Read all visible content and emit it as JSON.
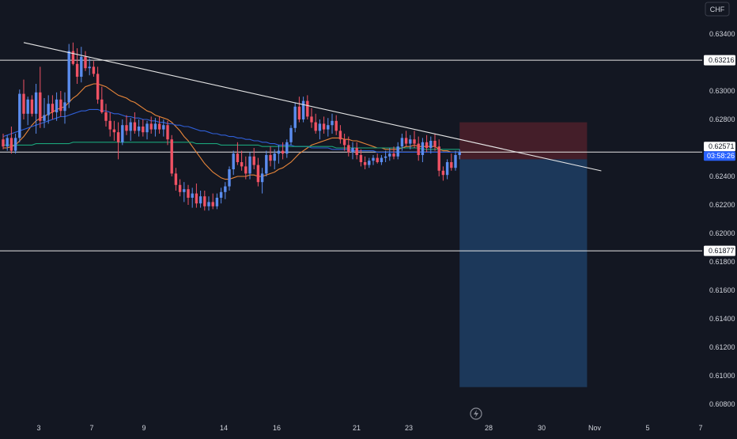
{
  "currency_button": {
    "label": "CHF"
  },
  "price_axis": {
    "ticks": [
      "0.63400",
      "0.63000",
      "0.62800",
      "0.62400",
      "0.62200",
      "0.62000",
      "0.61800",
      "0.61600",
      "0.61400",
      "0.61200",
      "0.61000",
      "0.60800"
    ],
    "badges": [
      {
        "value": "0.63216",
        "type": "level"
      },
      {
        "value": "0.62571",
        "type": "current",
        "countdown": "03:58:26"
      },
      {
        "value": "0.61877",
        "type": "level"
      }
    ]
  },
  "time_axis": {
    "labels": [
      "3",
      "7",
      "9",
      "14",
      "16",
      "21",
      "23",
      "28",
      "30",
      "Nov",
      "5",
      "7"
    ]
  },
  "colors": {
    "background": "#131722",
    "up": "#5b8def",
    "down": "#f05264",
    "ema_fast": "#e8863a",
    "ma_mid": "#2f5fd8",
    "ma_slow": "#1aa37a",
    "stop_zone": "#4a1f2a",
    "target_zone": "#1c3a5e",
    "lines": "#e6e6e6",
    "current_badge": "#2962ff"
  },
  "chart_data": {
    "type": "candlestick",
    "title": "",
    "xlabel": "",
    "ylabel": "",
    "ylim": [
      0.6075,
      0.635
    ],
    "x_ticks": [
      "3",
      "7",
      "9",
      "14",
      "16",
      "21",
      "23",
      "28",
      "30",
      "Nov",
      "5",
      "7"
    ],
    "y_ticks": [
      0.634,
      0.63,
      0.628,
      0.624,
      0.622,
      0.62,
      0.618,
      0.616,
      0.614,
      0.612,
      0.61,
      0.608
    ],
    "horizontal_levels": [
      0.63216,
      0.62571,
      0.61877
    ],
    "trendline": {
      "start": [
        5,
        0.6334
      ],
      "end": [
        142,
        0.6245
      ]
    },
    "position": {
      "entry": 0.6252,
      "stop": 0.6278,
      "target": 0.6092,
      "start_index": 111,
      "end_index": 142
    },
    "candles": [
      [
        0.6266,
        0.627,
        0.6259,
        0.6261
      ],
      [
        0.6261,
        0.6269,
        0.6258,
        0.6267
      ],
      [
        0.6267,
        0.6275,
        0.6256,
        0.6258
      ],
      [
        0.6258,
        0.627,
        0.6256,
        0.6267
      ],
      [
        0.6267,
        0.6301,
        0.6264,
        0.6298
      ],
      [
        0.6298,
        0.6308,
        0.628,
        0.6284
      ],
      [
        0.6284,
        0.6296,
        0.6276,
        0.6294
      ],
      [
        0.6294,
        0.6297,
        0.6282,
        0.6284
      ],
      [
        0.6284,
        0.6305,
        0.627,
        0.6299
      ],
      [
        0.6299,
        0.6317,
        0.6274,
        0.6279
      ],
      [
        0.6279,
        0.6295,
        0.6274,
        0.6283
      ],
      [
        0.6283,
        0.6297,
        0.6277,
        0.6291
      ],
      [
        0.6291,
        0.6297,
        0.628,
        0.6285
      ],
      [
        0.6285,
        0.6299,
        0.6279,
        0.6294
      ],
      [
        0.6294,
        0.63,
        0.6282,
        0.6286
      ],
      [
        0.6286,
        0.6299,
        0.6277,
        0.6292
      ],
      [
        0.6292,
        0.6333,
        0.6288,
        0.6328
      ],
      [
        0.6328,
        0.6334,
        0.6318,
        0.6319
      ],
      [
        0.6319,
        0.633,
        0.6305,
        0.631
      ],
      [
        0.631,
        0.6331,
        0.6306,
        0.6324
      ],
      [
        0.6324,
        0.6328,
        0.6314,
        0.6316
      ],
      [
        0.6316,
        0.6323,
        0.6311,
        0.6317
      ],
      [
        0.6317,
        0.6321,
        0.631,
        0.6312
      ],
      [
        0.6312,
        0.6317,
        0.6291,
        0.6294
      ],
      [
        0.6294,
        0.6303,
        0.6284,
        0.6285
      ],
      [
        0.6285,
        0.6291,
        0.6275,
        0.6279
      ],
      [
        0.6279,
        0.6285,
        0.6268,
        0.6273
      ],
      [
        0.6273,
        0.6279,
        0.6265,
        0.6271
      ],
      [
        0.6271,
        0.6278,
        0.6252,
        0.6264
      ],
      [
        0.6264,
        0.628,
        0.6262,
        0.6276
      ],
      [
        0.6276,
        0.6283,
        0.6269,
        0.6272
      ],
      [
        0.6272,
        0.6281,
        0.6265,
        0.6278
      ],
      [
        0.6278,
        0.6285,
        0.627,
        0.6272
      ],
      [
        0.6272,
        0.628,
        0.6268,
        0.6275
      ],
      [
        0.6275,
        0.628,
        0.6268,
        0.6271
      ],
      [
        0.6271,
        0.6279,
        0.6266,
        0.6277
      ],
      [
        0.6277,
        0.6282,
        0.627,
        0.6273
      ],
      [
        0.6273,
        0.6281,
        0.6268,
        0.6277
      ],
      [
        0.6277,
        0.6282,
        0.627,
        0.6273
      ],
      [
        0.6273,
        0.628,
        0.6268,
        0.6276
      ],
      [
        0.6276,
        0.6279,
        0.6262,
        0.6266
      ],
      [
        0.6266,
        0.6269,
        0.624,
        0.6242
      ],
      [
        0.6242,
        0.6246,
        0.623,
        0.6234
      ],
      [
        0.6234,
        0.6238,
        0.6226,
        0.6229
      ],
      [
        0.6229,
        0.6236,
        0.6222,
        0.6231
      ],
      [
        0.6231,
        0.6234,
        0.622,
        0.6225
      ],
      [
        0.6225,
        0.6232,
        0.6218,
        0.6228
      ],
      [
        0.6228,
        0.6235,
        0.6218,
        0.6221
      ],
      [
        0.6221,
        0.623,
        0.6218,
        0.6226
      ],
      [
        0.6226,
        0.623,
        0.6216,
        0.6219
      ],
      [
        0.6219,
        0.6226,
        0.6216,
        0.6222
      ],
      [
        0.6222,
        0.6228,
        0.6217,
        0.6219
      ],
      [
        0.6219,
        0.6228,
        0.6217,
        0.6225
      ],
      [
        0.6225,
        0.6232,
        0.6221,
        0.6229
      ],
      [
        0.6229,
        0.6236,
        0.6224,
        0.6233
      ],
      [
        0.6233,
        0.6247,
        0.623,
        0.6245
      ],
      [
        0.6245,
        0.6258,
        0.6241,
        0.6256
      ],
      [
        0.6256,
        0.6264,
        0.6248,
        0.625
      ],
      [
        0.625,
        0.6258,
        0.6244,
        0.6247
      ],
      [
        0.6247,
        0.6254,
        0.6238,
        0.6242
      ],
      [
        0.6242,
        0.6257,
        0.6238,
        0.6254
      ],
      [
        0.6254,
        0.626,
        0.6245,
        0.6248
      ],
      [
        0.6248,
        0.6253,
        0.6233,
        0.6236
      ],
      [
        0.6236,
        0.6246,
        0.6228,
        0.6242
      ],
      [
        0.6242,
        0.6258,
        0.624,
        0.6255
      ],
      [
        0.6255,
        0.6261,
        0.6247,
        0.6251
      ],
      [
        0.6251,
        0.6259,
        0.6245,
        0.6256
      ],
      [
        0.6256,
        0.6262,
        0.6249,
        0.6258
      ],
      [
        0.6258,
        0.6264,
        0.6252,
        0.6256
      ],
      [
        0.6256,
        0.6266,
        0.6253,
        0.6264
      ],
      [
        0.6264,
        0.6276,
        0.6262,
        0.6274
      ],
      [
        0.6274,
        0.6292,
        0.6271,
        0.6289
      ],
      [
        0.6289,
        0.6296,
        0.6278,
        0.628
      ],
      [
        0.628,
        0.6296,
        0.6278,
        0.6293
      ],
      [
        0.6293,
        0.6297,
        0.628,
        0.6282
      ],
      [
        0.6282,
        0.6288,
        0.6274,
        0.6278
      ],
      [
        0.6278,
        0.6284,
        0.627,
        0.6272
      ],
      [
        0.6272,
        0.628,
        0.6266,
        0.6277
      ],
      [
        0.6277,
        0.6282,
        0.627,
        0.6273
      ],
      [
        0.6273,
        0.6281,
        0.6268,
        0.6276
      ],
      [
        0.6276,
        0.6284,
        0.627,
        0.6279
      ],
      [
        0.6279,
        0.6283,
        0.6269,
        0.6272
      ],
      [
        0.6272,
        0.6276,
        0.6263,
        0.6266
      ],
      [
        0.6266,
        0.627,
        0.6258,
        0.6262
      ],
      [
        0.6262,
        0.6268,
        0.6254,
        0.6257
      ],
      [
        0.6257,
        0.6264,
        0.6252,
        0.626
      ],
      [
        0.626,
        0.6264,
        0.6252,
        0.6255
      ],
      [
        0.6255,
        0.6259,
        0.6247,
        0.625
      ],
      [
        0.625,
        0.6254,
        0.6245,
        0.6248
      ],
      [
        0.6248,
        0.6253,
        0.6246,
        0.6251
      ],
      [
        0.6251,
        0.6255,
        0.6248,
        0.6253
      ],
      [
        0.6253,
        0.6256,
        0.6249,
        0.625
      ],
      [
        0.625,
        0.6255,
        0.6248,
        0.6253
      ],
      [
        0.6253,
        0.6258,
        0.625,
        0.6254
      ],
      [
        0.6254,
        0.626,
        0.6251,
        0.6256
      ],
      [
        0.6256,
        0.6261,
        0.6252,
        0.6254
      ],
      [
        0.6254,
        0.6264,
        0.6252,
        0.6261
      ],
      [
        0.6261,
        0.627,
        0.6258,
        0.6267
      ],
      [
        0.6267,
        0.6272,
        0.6261,
        0.6263
      ],
      [
        0.6263,
        0.6269,
        0.6259,
        0.6266
      ],
      [
        0.6266,
        0.6272,
        0.626,
        0.6263
      ],
      [
        0.6263,
        0.6268,
        0.6251,
        0.6255
      ],
      [
        0.6255,
        0.6267,
        0.625,
        0.6264
      ],
      [
        0.6264,
        0.6269,
        0.6257,
        0.626
      ],
      [
        0.626,
        0.6268,
        0.6256,
        0.6265
      ],
      [
        0.6265,
        0.627,
        0.6258,
        0.6261
      ],
      [
        0.6261,
        0.6266,
        0.624,
        0.6244
      ],
      [
        0.6244,
        0.6247,
        0.6237,
        0.6241
      ],
      [
        0.6241,
        0.6252,
        0.6238,
        0.625
      ],
      [
        0.625,
        0.6256,
        0.6244,
        0.6246
      ],
      [
        0.6246,
        0.6258,
        0.6244,
        0.6255
      ],
      [
        0.6255,
        0.6259,
        0.6252,
        0.62571
      ]
    ],
    "moving_averages": [
      {
        "color": "ema_fast",
        "values": [
          0.626,
          0.626,
          0.6261,
          0.6262,
          0.6265,
          0.6268,
          0.6272,
          0.6276,
          0.6279,
          0.6281,
          0.6282,
          0.6284,
          0.6285,
          0.6287,
          0.6288,
          0.6289,
          0.6292,
          0.6295,
          0.6297,
          0.63,
          0.6303,
          0.6304,
          0.6305,
          0.6305,
          0.6304,
          0.6303,
          0.6301,
          0.6299,
          0.6297,
          0.6296,
          0.6295,
          0.6293,
          0.6292,
          0.629,
          0.6288,
          0.6286,
          0.6285,
          0.6283,
          0.6282,
          0.6281,
          0.628,
          0.6278,
          0.6275,
          0.6272,
          0.6268,
          0.6265,
          0.6261,
          0.6257,
          0.6253,
          0.6249,
          0.6246,
          0.6243,
          0.6241,
          0.6239,
          0.6238,
          0.6238,
          0.6239,
          0.624,
          0.624,
          0.624,
          0.6241,
          0.6241,
          0.624,
          0.624,
          0.6241,
          0.6242,
          0.6243,
          0.6245,
          0.6246,
          0.6248,
          0.625,
          0.6253,
          0.6256,
          0.6258,
          0.626,
          0.6262,
          0.6263,
          0.6264,
          0.6265,
          0.6266,
          0.6267,
          0.6267,
          0.6267,
          0.6266,
          0.6266,
          0.6265,
          0.6265,
          0.6264,
          0.6263,
          0.6262,
          0.6261,
          0.626,
          0.626,
          0.6259,
          0.6259,
          0.6259,
          0.6259,
          0.626,
          0.6261,
          0.6261,
          0.6262,
          0.6261,
          0.6261,
          0.6261,
          0.6261,
          0.6261,
          0.6259,
          0.6258,
          0.6258,
          0.6257,
          0.6257,
          0.6257
        ]
      },
      {
        "color": "ma_mid",
        "values": [
          0.6268,
          0.6269,
          0.627,
          0.6271,
          0.6272,
          0.6273,
          0.6274,
          0.6275,
          0.6276,
          0.6277,
          0.6278,
          0.6279,
          0.628,
          0.6281,
          0.6282,
          0.6282,
          0.6283,
          0.6284,
          0.6285,
          0.6286,
          0.6286,
          0.6287,
          0.6287,
          0.6287,
          0.6286,
          0.6286,
          0.6285,
          0.6284,
          0.6284,
          0.6283,
          0.6282,
          0.6282,
          0.6281,
          0.6281,
          0.628,
          0.628,
          0.6279,
          0.6279,
          0.6278,
          0.6278,
          0.6277,
          0.6277,
          0.6276,
          0.6276,
          0.6275,
          0.6275,
          0.6274,
          0.6273,
          0.6272,
          0.6272,
          0.6271,
          0.627,
          0.627,
          0.6269,
          0.6269,
          0.6268,
          0.6268,
          0.6267,
          0.6267,
          0.6266,
          0.6266,
          0.6265,
          0.6265,
          0.6264,
          0.6264,
          0.6263,
          0.6263,
          0.6262,
          0.6262,
          0.6262,
          0.6262,
          0.6261,
          0.6261,
          0.6261,
          0.6261,
          0.626,
          0.626,
          0.626,
          0.626,
          0.626,
          0.6259,
          0.6259,
          0.6259,
          0.6259,
          0.6259,
          0.6258,
          0.6258,
          0.6258,
          0.6258,
          0.6258,
          0.6258,
          0.6257,
          0.6257,
          0.6257,
          0.6257,
          0.6257,
          0.6257,
          0.6257,
          0.6257,
          0.6257,
          0.6257,
          0.6257,
          0.6257,
          0.6257,
          0.6257,
          0.6257,
          0.6257,
          0.6257,
          0.6257,
          0.6257,
          0.6257,
          0.6257
        ]
      },
      {
        "color": "ma_slow",
        "values": [
          0.6262,
          0.6262,
          0.6262,
          0.6262,
          0.6262,
          0.6262,
          0.6262,
          0.6262,
          0.6263,
          0.6263,
          0.6263,
          0.6263,
          0.6263,
          0.6263,
          0.6263,
          0.6263,
          0.6263,
          0.6264,
          0.6264,
          0.6264,
          0.6264,
          0.6264,
          0.6264,
          0.6264,
          0.6264,
          0.6264,
          0.6264,
          0.6264,
          0.6264,
          0.6264,
          0.6264,
          0.6264,
          0.6264,
          0.6264,
          0.6264,
          0.6264,
          0.6264,
          0.6264,
          0.6264,
          0.6264,
          0.6264,
          0.6264,
          0.6264,
          0.6264,
          0.6264,
          0.6264,
          0.6264,
          0.6263,
          0.6263,
          0.6263,
          0.6263,
          0.6263,
          0.6263,
          0.6262,
          0.6262,
          0.6262,
          0.6262,
          0.6262,
          0.6262,
          0.6262,
          0.6262,
          0.6262,
          0.6262,
          0.6261,
          0.6261,
          0.6261,
          0.6261,
          0.6261,
          0.6261,
          0.6261,
          0.6261,
          0.6261,
          0.6261,
          0.6261,
          0.6261,
          0.6261,
          0.6261,
          0.6261,
          0.6261,
          0.6261,
          0.6261,
          0.626,
          0.626,
          0.626,
          0.626,
          0.626,
          0.626,
          0.626,
          0.626,
          0.626,
          0.626,
          0.626,
          0.626,
          0.626,
          0.626,
          0.626,
          0.626,
          0.626,
          0.626,
          0.626,
          0.626,
          0.626,
          0.6259,
          0.6259,
          0.6259,
          0.6259,
          0.6259,
          0.6259,
          0.6259,
          0.6259,
          0.6259,
          0.6259
        ]
      }
    ]
  }
}
